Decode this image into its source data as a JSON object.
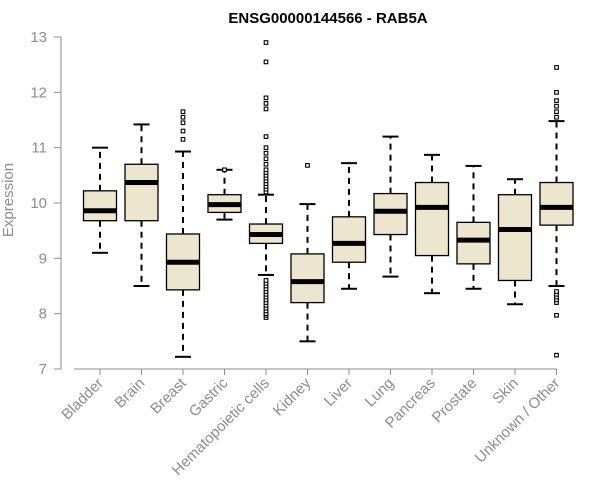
{
  "chart_data": {
    "type": "boxplot",
    "title": "ENSG00000144566 - RAB5A",
    "xlabel": "",
    "ylabel": "Expression",
    "ylim": [
      7,
      13
    ],
    "yticks": [
      7,
      8,
      9,
      10,
      11,
      12,
      13
    ],
    "grid": false,
    "box_fill": "#ede6cf",
    "box_stroke": "#000000",
    "axis_color": "#8c8c8c",
    "categories": [
      "Bladder",
      "Brain",
      "Breast",
      "Gastric",
      "Hematopoietic cells",
      "Kidney",
      "Liver",
      "Lung",
      "Pancreas",
      "Prostate",
      "Skin",
      "Unknown / Other"
    ],
    "boxes": [
      {
        "category": "Bladder",
        "whisker_low": 9.1,
        "q1": 9.68,
        "median": 9.86,
        "q3": 10.22,
        "whisker_high": 11.0,
        "outliers": []
      },
      {
        "category": "Brain",
        "whisker_low": 8.5,
        "q1": 9.68,
        "median": 10.37,
        "q3": 10.7,
        "whisker_high": 11.42,
        "outliers": []
      },
      {
        "category": "Breast",
        "whisker_low": 7.22,
        "q1": 8.43,
        "median": 8.93,
        "q3": 9.44,
        "whisker_high": 10.93,
        "outliers": [
          11.15,
          11.3,
          11.45,
          11.55,
          11.65
        ]
      },
      {
        "category": "Gastric",
        "whisker_low": 9.7,
        "q1": 9.83,
        "median": 9.97,
        "q3": 10.15,
        "whisker_high": 10.6,
        "outliers": [
          10.6
        ]
      },
      {
        "category": "Hematopoietic cells",
        "whisker_low": 8.7,
        "q1": 9.27,
        "median": 9.43,
        "q3": 9.62,
        "whisker_high": 10.15,
        "outliers": [
          7.93,
          7.97,
          8.0,
          8.05,
          8.1,
          8.15,
          8.2,
          8.25,
          8.3,
          8.35,
          8.4,
          8.45,
          8.5,
          8.55,
          8.6,
          10.2,
          10.25,
          10.3,
          10.35,
          10.4,
          10.45,
          10.5,
          10.55,
          10.6,
          10.7,
          10.8,
          10.9,
          11.0,
          11.2,
          11.7,
          11.8,
          11.9,
          12.55,
          12.9
        ]
      },
      {
        "category": "Kidney",
        "whisker_low": 7.5,
        "q1": 8.2,
        "median": 8.58,
        "q3": 9.08,
        "whisker_high": 9.98,
        "outliers": [
          10.68
        ]
      },
      {
        "category": "Liver",
        "whisker_low": 8.45,
        "q1": 8.93,
        "median": 9.27,
        "q3": 9.75,
        "whisker_high": 10.72,
        "outliers": []
      },
      {
        "category": "Lung",
        "whisker_low": 8.67,
        "q1": 9.43,
        "median": 9.85,
        "q3": 10.17,
        "whisker_high": 11.2,
        "outliers": []
      },
      {
        "category": "Pancreas",
        "whisker_low": 8.37,
        "q1": 9.05,
        "median": 9.92,
        "q3": 10.37,
        "whisker_high": 10.87,
        "outliers": []
      },
      {
        "category": "Prostate",
        "whisker_low": 8.45,
        "q1": 8.9,
        "median": 9.33,
        "q3": 9.65,
        "whisker_high": 10.67,
        "outliers": []
      },
      {
        "category": "Skin",
        "whisker_low": 8.17,
        "q1": 8.6,
        "median": 9.52,
        "q3": 10.15,
        "whisker_high": 10.43,
        "outliers": []
      },
      {
        "category": "Unknown / Other",
        "whisker_low": 8.5,
        "q1": 9.6,
        "median": 9.92,
        "q3": 10.37,
        "whisker_high": 11.48,
        "outliers": [
          7.25,
          7.97,
          8.2,
          8.25,
          8.3,
          8.35,
          8.4,
          11.55,
          11.65,
          11.75,
          11.85,
          12.0,
          12.45
        ]
      }
    ]
  }
}
